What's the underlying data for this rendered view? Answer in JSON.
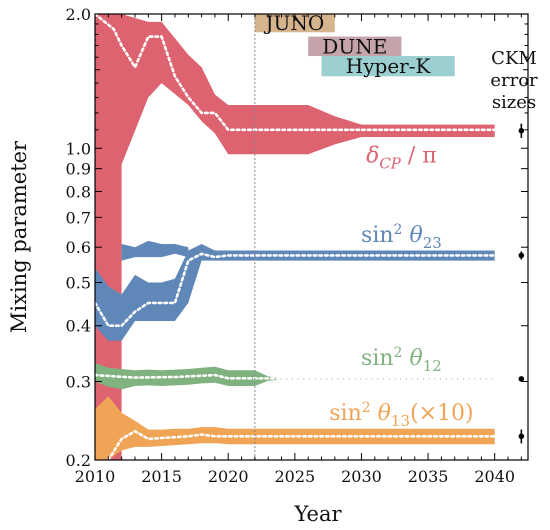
{
  "chart_data": {
    "type": "area",
    "xlabel": "Year",
    "ylabel": "Mixing parameter",
    "xlim": [
      2010,
      2042.5
    ],
    "ylim": [
      0.2,
      2.0
    ],
    "yscale": "log",
    "grid": false,
    "x_ticks": [
      {
        "value": 2010,
        "label": "2010"
      },
      {
        "value": 2015,
        "label": "2015"
      },
      {
        "value": 2020,
        "label": "2020"
      },
      {
        "value": 2025,
        "label": "2025"
      },
      {
        "value": 2030,
        "label": "2030"
      },
      {
        "value": 2035,
        "label": "2035"
      },
      {
        "value": 2040,
        "label": "2040"
      }
    ],
    "y_ticks": [
      {
        "value": 0.2,
        "label": "0.2"
      },
      {
        "value": 0.3,
        "label": "0.3"
      },
      {
        "value": 0.4,
        "label": "0.4"
      },
      {
        "value": 0.5,
        "label": "0.5"
      },
      {
        "value": 0.6,
        "label": "0.6"
      },
      {
        "value": 0.7,
        "label": "0.7"
      },
      {
        "value": 0.8,
        "label": "0.8"
      },
      {
        "value": 0.9,
        "label": "0.9"
      },
      {
        "value": 1.0,
        "label": "1.0"
      },
      {
        "value": 2.0,
        "label": "2.0"
      }
    ],
    "reference_line_year": 2022,
    "experiments": [
      {
        "name": "JUNO",
        "start": 2022,
        "end": 2028,
        "y_low": 1.82,
        "y_high": 2.0,
        "color": "#d6b48d"
      },
      {
        "name": "DUNE",
        "start": 2026,
        "end": 2033,
        "y_low": 1.61,
        "y_high": 1.78,
        "color": "#c4a3ab"
      },
      {
        "name": "Hyper-K",
        "start": 2027,
        "end": 2037,
        "y_low": 1.45,
        "y_high": 1.61,
        "color": "#9ccfd0"
      }
    ],
    "series": [
      {
        "name": "δCP / π",
        "color": "#dd6371",
        "x": [
          2010,
          2012,
          2012,
          2014,
          2015,
          2017,
          2018,
          2019,
          2020,
          2026,
          2028,
          2030,
          2040
        ],
        "upper": [
          2.0,
          2.0,
          2.0,
          1.92,
          1.92,
          1.62,
          1.52,
          1.32,
          1.25,
          1.25,
          1.18,
          1.13,
          1.13
        ],
        "lower": [
          0.2,
          0.2,
          0.92,
          1.3,
          1.4,
          1.25,
          1.15,
          1.08,
          0.97,
          0.97,
          1.02,
          1.06,
          1.06
        ],
        "central_x": [
          2010,
          2011.4,
          2012,
          2013,
          2014,
          2015,
          2016,
          2017,
          2018,
          2019,
          2020,
          2040
        ],
        "central": [
          2.0,
          1.85,
          1.7,
          1.52,
          1.78,
          1.78,
          1.45,
          1.3,
          1.2,
          1.2,
          1.1,
          1.1
        ],
        "label_parts": {
          "main": "δ",
          "sub": "CP",
          "rest": " / π"
        },
        "ckm_center": 1.095,
        "ckm_error": 0.04
      },
      {
        "name": "sin² θ23",
        "color": "#5f87b8",
        "x": [
          2010,
          2011,
          2012,
          2013,
          2014,
          2015,
          2016,
          2017,
          2018,
          2019,
          2020,
          2026,
          2040
        ],
        "upper": [
          0.54,
          0.49,
          0.47,
          0.52,
          0.5,
          0.5,
          0.51,
          0.59,
          0.61,
          0.59,
          0.59,
          0.59,
          0.59
        ],
        "lower": [
          0.4,
          0.37,
          0.37,
          0.41,
          0.41,
          0.41,
          0.41,
          0.45,
          0.56,
          0.56,
          0.56,
          0.56,
          0.56
        ],
        "upper2_x": [
          2012,
          2013,
          2014,
          2015,
          2016,
          2017
        ],
        "upper2": [
          0.61,
          0.6,
          0.62,
          0.61,
          0.61,
          0.6
        ],
        "lower2": [
          0.56,
          0.57,
          0.57,
          0.57,
          0.58,
          0.57
        ],
        "central_x": [
          2010,
          2011,
          2012,
          2013,
          2014,
          2015,
          2016,
          2017,
          2018,
          2019,
          2020,
          2040
        ],
        "central": [
          0.45,
          0.4,
          0.4,
          0.43,
          0.45,
          0.45,
          0.45,
          0.56,
          0.58,
          0.57,
          0.575,
          0.575
        ],
        "label_parts": {
          "main": "sin",
          "sup": "2",
          "theta": " θ",
          "sub": "23",
          "rest": ""
        },
        "ckm_center": 0.575,
        "ckm_error": 0.012
      },
      {
        "name": "sin² θ12",
        "color": "#7fb27f",
        "x": [
          2010,
          2011,
          2012,
          2013,
          2014,
          2015,
          2016,
          2017,
          2018,
          2019,
          2020,
          2021,
          2022,
          2023,
          2024,
          2040
        ],
        "upper": [
          0.33,
          0.322,
          0.32,
          0.318,
          0.319,
          0.318,
          0.319,
          0.32,
          0.322,
          0.324,
          0.318,
          0.318,
          0.318,
          0.308,
          0.305,
          0.305
        ],
        "lower": [
          0.3,
          0.292,
          0.288,
          0.293,
          0.294,
          0.293,
          0.294,
          0.295,
          0.297,
          0.298,
          0.293,
          0.293,
          0.293,
          0.301,
          0.303,
          0.303
        ],
        "central_x": [
          2010,
          2013,
          2016,
          2019,
          2020,
          2040
        ],
        "central": [
          0.31,
          0.306,
          0.307,
          0.31,
          0.305,
          0.304
        ],
        "label_parts": {
          "main": "sin",
          "sup": "2",
          "theta": " θ",
          "sub": "12",
          "rest": ""
        },
        "ckm_center": 0.304,
        "ckm_error": 0.003
      },
      {
        "name": "sin² θ13 (×10)",
        "color": "#f0a456",
        "x": [
          2010,
          2011,
          2012,
          2013,
          2014,
          2015,
          2016,
          2017,
          2018,
          2019,
          2020,
          2040
        ],
        "upper": [
          0.26,
          0.278,
          0.255,
          0.245,
          0.234,
          0.234,
          0.235,
          0.235,
          0.237,
          0.237,
          0.235,
          0.235
        ],
        "lower": [
          0.2,
          0.2,
          0.21,
          0.214,
          0.214,
          0.215,
          0.216,
          0.217,
          0.218,
          0.218,
          0.217,
          0.217
        ],
        "central_x": [
          2011,
          2012,
          2013,
          2014,
          2015,
          2016,
          2017,
          2018,
          2019,
          2040
        ],
        "central": [
          0.2,
          0.223,
          0.232,
          0.223,
          0.224,
          0.225,
          0.226,
          0.228,
          0.226,
          0.226
        ],
        "label_parts": {
          "main": "sin",
          "sup": "2",
          "theta": " θ",
          "sub": "13",
          "rest": "(×10)"
        },
        "ckm_center": 0.226,
        "ckm_error": 0.008
      }
    ],
    "ckm_label": [
      "CKM",
      "error",
      "sizes"
    ],
    "ckm_year": 2042
  }
}
